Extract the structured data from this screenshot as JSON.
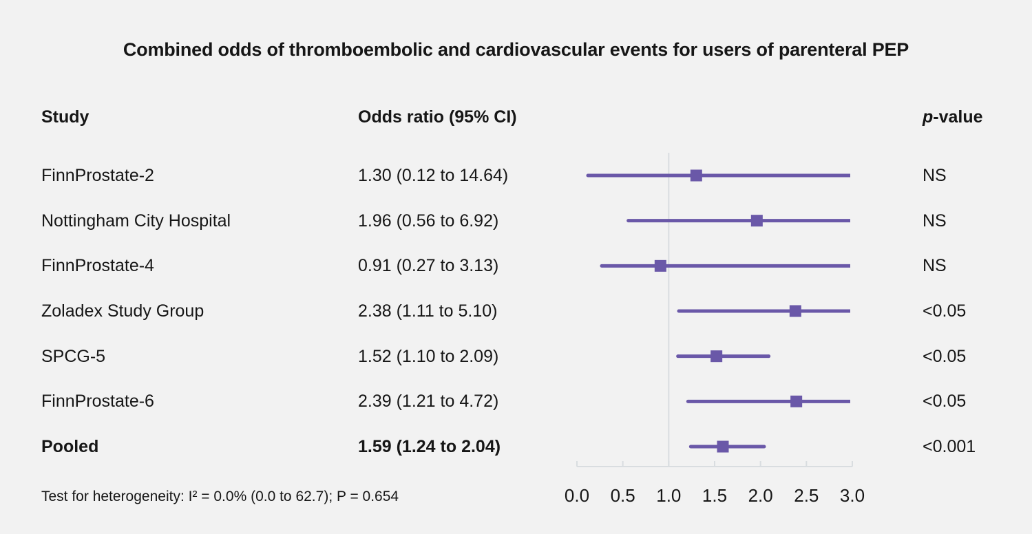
{
  "title": "Combined odds of thromboembolic and cardiovascular events for users of parenteral PEP",
  "columns": {
    "study": "Study",
    "odds_ratio": "Odds ratio (95% CI)",
    "p_italic": "p",
    "p_rest": "-value"
  },
  "footnote": "Test for heterogeneity: I² = 0.0% (0.0 to 62.7); P = 0.654",
  "colors": {
    "background": "#f2f2f2",
    "accent_purple": "#6a58a8",
    "grid_gray": "#d9dde0",
    "text": "#161616"
  },
  "chart_data": {
    "type": "forest",
    "title": "Combined odds of thromboembolic and cardiovascular events for users of parenteral PEP",
    "xlabel": "",
    "xlim": [
      0.0,
      3.0
    ],
    "reference_value": 1.0,
    "clip_max": 3.0,
    "x_tick_labels": [
      "0.0",
      "0.5",
      "1.0",
      "1.5",
      "2.0",
      "2.5",
      "3.0"
    ],
    "legend": "none",
    "grid": "reference-line-only",
    "series": [
      {
        "study": "FinnProstate-2",
        "or": 1.3,
        "lo": 0.12,
        "hi": 14.64,
        "or_text": "1.30 (0.12 to 14.64)",
        "p": "NS",
        "pooled": false
      },
      {
        "study": "Nottingham City Hospital",
        "or": 1.96,
        "lo": 0.56,
        "hi": 6.92,
        "or_text": "1.96 (0.56 to 6.92)",
        "p": "NS",
        "pooled": false
      },
      {
        "study": "FinnProstate-4",
        "or": 0.91,
        "lo": 0.27,
        "hi": 3.13,
        "or_text": "0.91 (0.27 to 3.13)",
        "p": "NS",
        "pooled": false
      },
      {
        "study": "Zoladex Study Group",
        "or": 2.38,
        "lo": 1.11,
        "hi": 5.1,
        "or_text": "2.38 (1.11 to 5.10)",
        "p": "<0.05",
        "pooled": false
      },
      {
        "study": "SPCG-5",
        "or": 1.52,
        "lo": 1.1,
        "hi": 2.09,
        "or_text": "1.52 (1.10 to 2.09)",
        "p": "<0.05",
        "pooled": false
      },
      {
        "study": "FinnProstate-6",
        "or": 2.39,
        "lo": 1.21,
        "hi": 4.72,
        "or_text": "2.39 (1.21 to 4.72)",
        "p": "<0.05",
        "pooled": false
      },
      {
        "study": "Pooled",
        "or": 1.59,
        "lo": 1.24,
        "hi": 2.04,
        "or_text": "1.59 (1.24 to 2.04)",
        "p": "<0.001",
        "pooled": true
      }
    ]
  }
}
